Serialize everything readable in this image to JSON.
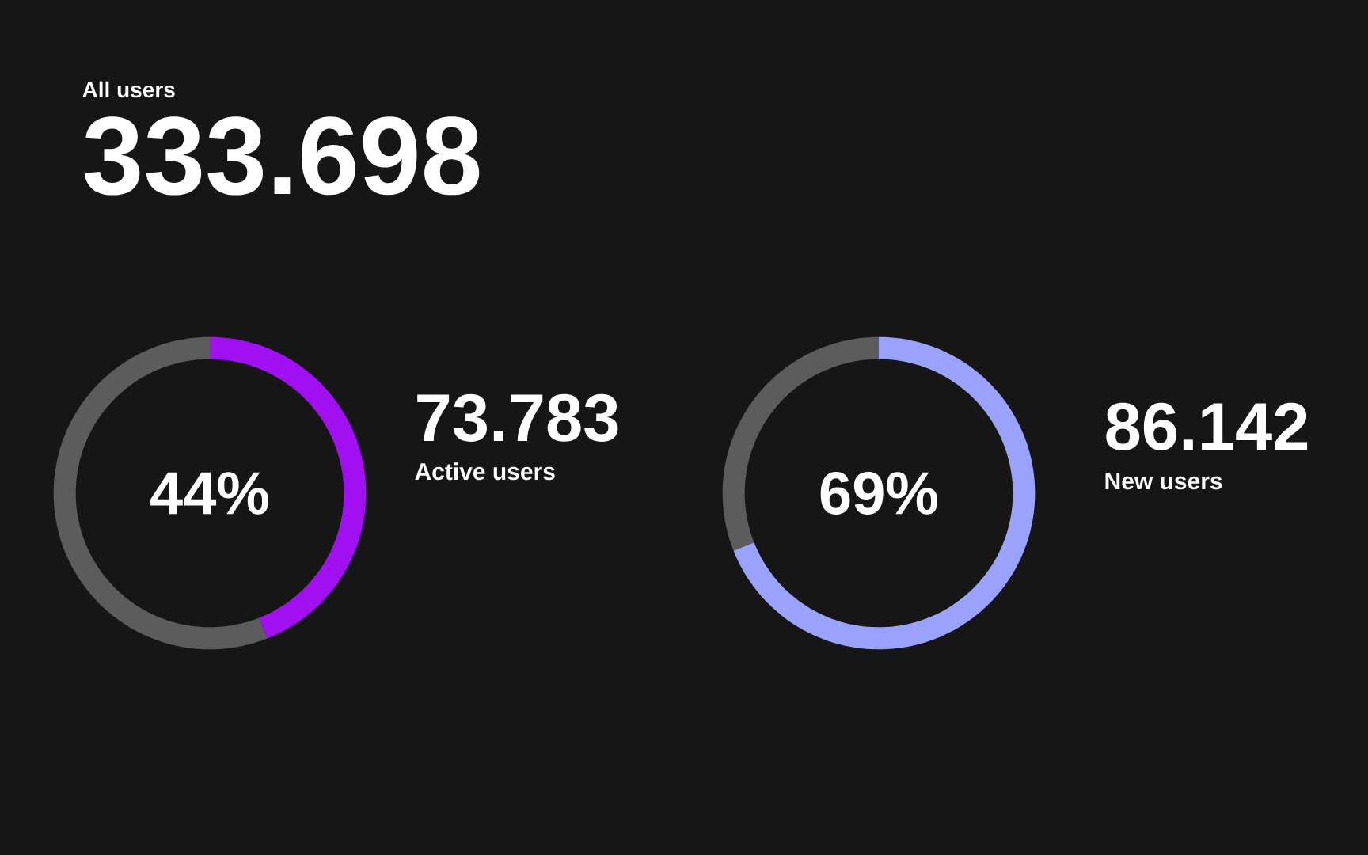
{
  "chart_data": [
    {
      "type": "other",
      "title": "All users",
      "annotations": [
        "333.698"
      ]
    },
    {
      "type": "donut",
      "title": "Active users",
      "annotations": [
        "44%",
        "73.783"
      ],
      "categories": [
        null,
        null
      ],
      "values": [
        44,
        56
      ],
      "colors": [
        "#a010f0",
        "#5c5c5c"
      ]
    },
    {
      "type": "donut",
      "title": "New users",
      "annotations": [
        "69%",
        "86.142"
      ],
      "categories": [
        null,
        null
      ],
      "values": [
        69,
        31
      ],
      "colors": [
        "#9aa2fc",
        "#5c5c5c"
      ]
    }
  ]
}
